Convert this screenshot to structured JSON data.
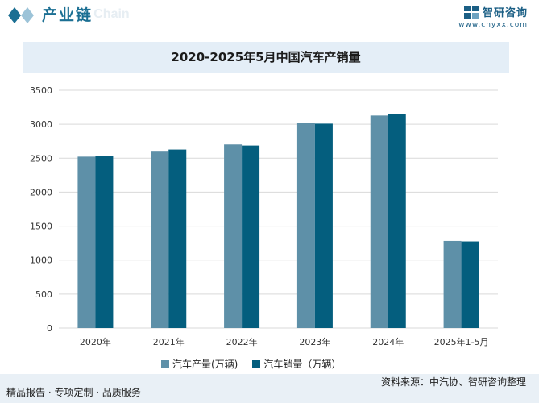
{
  "header": {
    "section_title": "产业链",
    "section_watermark": "ial Chain",
    "brand_name": "智研咨询",
    "brand_url": "www.chyxx.com"
  },
  "chart_data": {
    "type": "bar",
    "title": "2020-2025年5月中国汽车产销量",
    "categories": [
      "2020年",
      "2021年",
      "2022年",
      "2023年",
      "2024年",
      "2025年1-5月"
    ],
    "series": [
      {
        "name": "汽车产量(万辆)",
        "values": [
          2523,
          2608,
          2702,
          3016,
          3128,
          1282
        ],
        "color": "#5e90a8"
      },
      {
        "name": "汽车销量（万辆）",
        "values": [
          2527,
          2627,
          2686,
          3009,
          3144,
          1275
        ],
        "color": "#045e7e"
      }
    ],
    "ylim": [
      0,
      3500
    ],
    "yticks": [
      "0",
      "500",
      "1000",
      "1500",
      "2000",
      "2500",
      "3000",
      "3500"
    ],
    "grid": true,
    "legend_position": "bottom"
  },
  "footer": {
    "left_text": "精品报告 · 专项定制 · 品质服务",
    "source_text": "资料来源：中汽协、智研咨询整理"
  }
}
